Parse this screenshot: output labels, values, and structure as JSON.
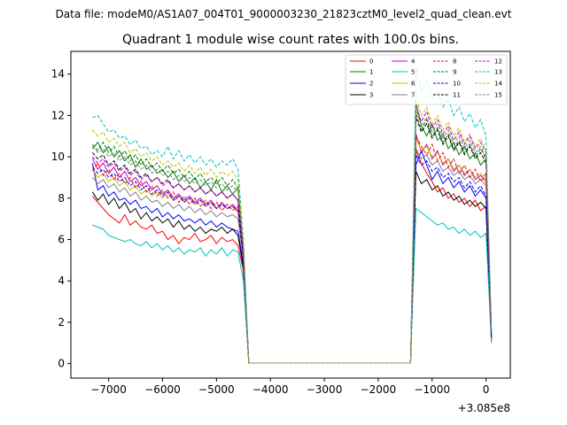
{
  "figure": {
    "suptitle": "Data file: modeM0/AS1A07_004T01_9000003230_21823cztM0_level2_quad_clean.evt"
  },
  "chart_data": {
    "type": "line",
    "title": "Quadrant 1 module wise count rates with 100.0s bins.",
    "xlabel": "",
    "ylabel": "",
    "x_offset_label": "+3.085e8",
    "xlim": [
      -7700,
      450
    ],
    "ylim": [
      -0.7,
      15.1
    ],
    "xticks": [
      -7000,
      -6000,
      -5000,
      -4000,
      -3000,
      -2000,
      -1000,
      0
    ],
    "xtick_labels": [
      "−7000",
      "−6000",
      "−5000",
      "−4000",
      "−3000",
      "−2000",
      "−1000",
      "0"
    ],
    "yticks": [
      0,
      2,
      4,
      6,
      8,
      10,
      12,
      14
    ],
    "ytick_labels": [
      "0",
      "2",
      "4",
      "6",
      "8",
      "10",
      "12",
      "14"
    ],
    "grid": false,
    "legend_position": "upper-right",
    "x": [
      -7300,
      -7200,
      -7100,
      -7000,
      -6900,
      -6800,
      -6700,
      -6600,
      -6500,
      -6400,
      -6300,
      -6200,
      -6100,
      -6000,
      -5900,
      -5800,
      -5700,
      -5600,
      -5500,
      -5400,
      -5300,
      -5200,
      -5100,
      -5000,
      -4900,
      -4800,
      -4700,
      -4600,
      -4500,
      -4400,
      -1400,
      -1300,
      -1200,
      -1100,
      -1000,
      -900,
      -800,
      -700,
      -600,
      -500,
      -400,
      -300,
      -200,
      -100,
      0,
      100
    ],
    "series": [
      {
        "name": "0",
        "color": "#ff0000",
        "dash": "solid",
        "values": [
          8.1,
          7.8,
          7.5,
          7.2,
          7.0,
          6.8,
          7.2,
          6.7,
          6.9,
          6.6,
          6.5,
          6.7,
          6.3,
          6.4,
          6.0,
          6.2,
          5.8,
          6.1,
          6.0,
          6.3,
          5.9,
          6.0,
          6.2,
          5.8,
          6.1,
          5.9,
          6.0,
          5.7,
          4.5,
          0.03,
          0.03,
          10.3,
          9.7,
          9.2,
          8.8,
          8.3,
          8.5,
          8.0,
          8.2,
          7.8,
          8.0,
          7.6,
          7.9,
          7.4,
          7.6,
          1.1
        ]
      },
      {
        "name": "1",
        "color": "#008000",
        "dash": "solid",
        "values": [
          10.4,
          10.7,
          10.2,
          10.5,
          10.0,
          10.3,
          9.8,
          10.1,
          9.5,
          9.9,
          9.4,
          9.6,
          9.2,
          9.4,
          9.0,
          9.3,
          8.8,
          9.1,
          8.7,
          9.0,
          8.5,
          8.8,
          8.4,
          8.9,
          8.3,
          8.6,
          8.2,
          8.5,
          5.5,
          0.03,
          0.03,
          12.6,
          11.5,
          11.0,
          11.6,
          10.8,
          11.1,
          10.4,
          10.7,
          10.1,
          10.5,
          9.9,
          10.2,
          9.6,
          9.9,
          1.5
        ]
      },
      {
        "name": "2",
        "color": "#0000ff",
        "dash": "solid",
        "values": [
          9.7,
          8.4,
          8.6,
          8.1,
          8.3,
          7.9,
          8.0,
          7.7,
          7.9,
          7.5,
          7.6,
          7.3,
          7.5,
          7.1,
          7.3,
          7.0,
          7.2,
          6.9,
          7.0,
          6.8,
          7.0,
          6.7,
          6.9,
          6.6,
          6.8,
          6.6,
          6.5,
          6.4,
          4.8,
          0.03,
          0.03,
          9.6,
          10.3,
          9.6,
          8.9,
          9.3,
          8.7,
          9.0,
          8.5,
          8.8,
          8.3,
          8.6,
          8.1,
          8.4,
          8.0,
          1.2
        ]
      },
      {
        "name": "3",
        "color": "#000000",
        "dash": "solid",
        "values": [
          8.3,
          7.9,
          8.2,
          7.7,
          8.0,
          7.5,
          7.8,
          7.3,
          7.5,
          7.0,
          7.3,
          6.9,
          7.1,
          6.8,
          7.0,
          6.6,
          6.9,
          6.5,
          6.7,
          6.4,
          6.6,
          6.3,
          6.5,
          6.4,
          6.6,
          6.3,
          6.5,
          6.2,
          4.6,
          0.03,
          0.03,
          9.3,
          8.7,
          8.9,
          8.4,
          8.6,
          8.1,
          8.3,
          7.9,
          8.1,
          7.7,
          7.9,
          7.6,
          7.8,
          7.5,
          1.1
        ]
      },
      {
        "name": "4",
        "color": "#bf00bf",
        "dash": "solid",
        "values": [
          9.9,
          9.4,
          9.7,
          9.2,
          9.5,
          9.0,
          9.3,
          8.8,
          9.0,
          8.6,
          8.8,
          8.4,
          8.6,
          8.2,
          8.4,
          8.0,
          8.2,
          7.9,
          8.1,
          7.8,
          8.0,
          7.7,
          7.9,
          7.5,
          7.8,
          7.5,
          7.7,
          7.4,
          5.1,
          0.03,
          0.03,
          11.1,
          10.2,
          10.6,
          9.9,
          10.3,
          9.6,
          9.9,
          9.3,
          9.6,
          9.1,
          9.4,
          8.9,
          9.1,
          8.8,
          1.3
        ]
      },
      {
        "name": "5",
        "color": "#00bfbf",
        "dash": "solid",
        "values": [
          6.7,
          6.6,
          6.5,
          6.2,
          6.1,
          6.0,
          5.9,
          6.0,
          5.8,
          5.7,
          5.9,
          5.6,
          5.8,
          5.5,
          5.7,
          5.4,
          5.6,
          5.3,
          5.5,
          5.4,
          5.6,
          5.2,
          5.5,
          5.3,
          5.6,
          5.2,
          5.5,
          5.4,
          4.0,
          0.03,
          0.03,
          7.5,
          7.3,
          7.1,
          6.9,
          6.7,
          6.8,
          6.5,
          6.6,
          6.3,
          6.5,
          6.2,
          6.4,
          6.1,
          6.3,
          1.0
        ]
      },
      {
        "name": "6",
        "color": "#bfbf00",
        "dash": "solid",
        "values": [
          9.4,
          9.0,
          9.2,
          8.8,
          9.0,
          8.6,
          8.8,
          8.4,
          8.6,
          8.2,
          8.4,
          8.1,
          8.3,
          8.0,
          8.2,
          7.9,
          8.1,
          7.8,
          8.0,
          7.7,
          7.9,
          7.6,
          7.8,
          7.5,
          7.7,
          7.5,
          7.6,
          7.3,
          5.2,
          0.03,
          0.03,
          10.9,
          10.3,
          10.5,
          10.0,
          10.2,
          9.7,
          9.9,
          9.4,
          9.6,
          9.2,
          9.4,
          9.0,
          9.2,
          8.9,
          1.3
        ]
      },
      {
        "name": "7",
        "color": "#808080",
        "dash": "solid",
        "values": [
          9.0,
          8.7,
          8.9,
          8.5,
          8.7,
          8.3,
          8.5,
          8.1,
          8.3,
          7.9,
          8.1,
          7.8,
          7.9,
          7.6,
          7.8,
          7.5,
          7.7,
          7.4,
          7.6,
          7.3,
          7.5,
          7.2,
          7.4,
          7.1,
          7.3,
          7.1,
          7.2,
          7.0,
          5.0,
          0.03,
          0.03,
          10.4,
          9.9,
          10.1,
          9.6,
          9.8,
          9.3,
          9.5,
          9.1,
          9.3,
          8.9,
          9.1,
          8.7,
          8.9,
          8.6,
          1.2
        ]
      },
      {
        "name": "8",
        "color": "#ff0000",
        "dash": "dashed",
        "values": [
          9.3,
          9.7,
          9.1,
          9.4,
          8.9,
          9.2,
          8.7,
          9.0,
          8.5,
          8.8,
          8.3,
          8.6,
          8.1,
          8.4,
          8.0,
          8.3,
          7.8,
          8.1,
          7.7,
          8.0,
          7.6,
          7.9,
          7.5,
          7.8,
          7.4,
          7.7,
          7.4,
          7.6,
          5.3,
          0.03,
          0.03,
          11.0,
          10.5,
          10.1,
          10.6,
          9.8,
          10.2,
          9.5,
          9.9,
          9.2,
          9.6,
          9.0,
          9.4,
          8.8,
          9.2,
          1.3
        ]
      },
      {
        "name": "9",
        "color": "#008000",
        "dash": "dashed",
        "values": [
          10.6,
          10.3,
          10.7,
          10.2,
          10.5,
          10.0,
          10.3,
          9.8,
          10.1,
          9.6,
          9.9,
          9.5,
          9.7,
          9.3,
          9.6,
          9.2,
          9.4,
          9.0,
          9.3,
          8.9,
          9.2,
          8.8,
          9.0,
          8.7,
          9.0,
          8.6,
          8.9,
          8.5,
          5.6,
          0.03,
          0.03,
          12.1,
          11.3,
          11.8,
          11.0,
          11.4,
          10.7,
          11.1,
          10.4,
          10.8,
          10.2,
          10.6,
          10.0,
          10.4,
          9.9,
          1.5
        ]
      },
      {
        "name": "10",
        "color": "#0000ff",
        "dash": "dashed",
        "values": [
          9.5,
          9.2,
          9.4,
          9.0,
          9.2,
          8.8,
          9.0,
          8.6,
          8.8,
          8.4,
          8.6,
          8.2,
          8.4,
          8.1,
          8.3,
          7.9,
          8.1,
          7.8,
          8.0,
          7.7,
          7.9,
          7.6,
          7.8,
          7.5,
          7.7,
          7.5,
          7.6,
          7.4,
          5.1,
          0.03,
          0.03,
          10.1,
          9.6,
          9.8,
          9.3,
          9.5,
          9.0,
          9.2,
          8.8,
          9.0,
          8.5,
          8.8,
          8.3,
          8.6,
          8.1,
          1.2
        ]
      },
      {
        "name": "11",
        "color": "#000000",
        "dash": "dashed",
        "values": [
          10.2,
          9.9,
          10.1,
          9.6,
          9.8,
          9.4,
          9.6,
          9.2,
          9.4,
          9.0,
          9.2,
          8.8,
          9.0,
          8.7,
          8.9,
          8.5,
          8.7,
          8.4,
          8.6,
          8.3,
          8.5,
          8.2,
          8.4,
          8.1,
          8.3,
          8.0,
          8.2,
          7.9,
          5.4,
          0.03,
          0.03,
          11.9,
          11.2,
          11.6,
          10.9,
          11.3,
          10.6,
          11.0,
          10.3,
          10.7,
          10.1,
          10.5,
          9.9,
          10.2,
          9.7,
          1.4
        ]
      },
      {
        "name": "12",
        "color": "#bf00bf",
        "dash": "dashed",
        "values": [
          10.0,
          9.7,
          9.9,
          9.5,
          9.7,
          9.3,
          9.5,
          9.1,
          9.3,
          8.9,
          9.1,
          8.8,
          9.0,
          8.6,
          8.8,
          8.5,
          8.7,
          8.4,
          8.6,
          8.3,
          8.5,
          8.2,
          8.4,
          8.1,
          8.3,
          8.0,
          8.2,
          7.9,
          5.4,
          0.03,
          0.03,
          12.5,
          11.7,
          12.2,
          11.4,
          11.8,
          11.1,
          11.5,
          10.8,
          11.2,
          10.6,
          11.0,
          10.4,
          10.7,
          10.2,
          1.5
        ]
      },
      {
        "name": "13",
        "color": "#00bfbf",
        "dash": "dashed",
        "values": [
          11.9,
          12.0,
          11.6,
          11.2,
          11.3,
          10.9,
          11.0,
          10.6,
          10.8,
          10.4,
          10.5,
          10.1,
          10.3,
          10.0,
          10.5,
          9.9,
          10.3,
          9.8,
          10.1,
          9.7,
          10.0,
          9.6,
          9.9,
          9.5,
          9.8,
          9.6,
          9.9,
          9.4,
          6.0,
          0.03,
          0.03,
          14.3,
          13.2,
          13.7,
          12.8,
          13.2,
          12.4,
          12.8,
          12.0,
          12.4,
          11.7,
          12.1,
          11.4,
          11.8,
          11.0,
          1.7
        ]
      },
      {
        "name": "14",
        "color": "#bfbf00",
        "dash": "dashed",
        "values": [
          11.3,
          11.0,
          11.2,
          10.7,
          10.9,
          10.5,
          10.7,
          10.2,
          10.4,
          10.0,
          10.2,
          9.8,
          10.0,
          9.6,
          9.8,
          9.5,
          9.7,
          9.3,
          9.6,
          9.2,
          9.5,
          9.1,
          9.4,
          9.0,
          9.3,
          9.1,
          9.3,
          8.9,
          5.8,
          0.03,
          0.03,
          12.8,
          12.0,
          12.4,
          11.6,
          12.0,
          11.3,
          11.7,
          11.0,
          11.4,
          10.7,
          11.1,
          10.5,
          10.9,
          10.3,
          1.6
        ]
      },
      {
        "name": "15",
        "color": "#808080",
        "dash": "dashed",
        "values": [
          10.5,
          10.2,
          10.4,
          10.0,
          10.2,
          9.8,
          10.0,
          9.6,
          9.8,
          9.4,
          9.6,
          9.2,
          9.4,
          9.1,
          9.3,
          8.9,
          9.1,
          8.8,
          9.0,
          8.7,
          8.9,
          8.6,
          8.8,
          8.5,
          8.7,
          8.4,
          8.6,
          8.3,
          5.6,
          0.03,
          0.03,
          12.3,
          11.5,
          11.9,
          11.2,
          11.6,
          10.9,
          11.3,
          10.6,
          11.0,
          10.4,
          10.8,
          10.2,
          10.5,
          10.0,
          1.5
        ]
      }
    ]
  }
}
